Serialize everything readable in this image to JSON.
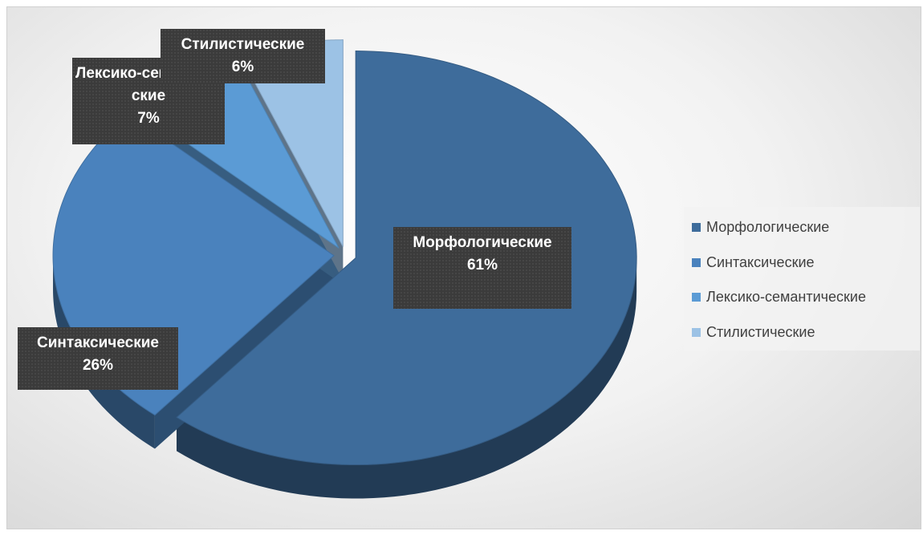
{
  "chart_data": {
    "type": "pie",
    "categories": [
      "Морфологические",
      "Синтаксические",
      "Лексико-семантические",
      "Стилистические"
    ],
    "values": [
      61,
      26,
      7,
      6
    ],
    "value_labels": [
      "61%",
      "26%",
      "7%",
      "6%"
    ],
    "colors": [
      "#3e6c9b",
      "#4a82bd",
      "#5b9bd5",
      "#9cc2e5"
    ],
    "legend": "right"
  }
}
